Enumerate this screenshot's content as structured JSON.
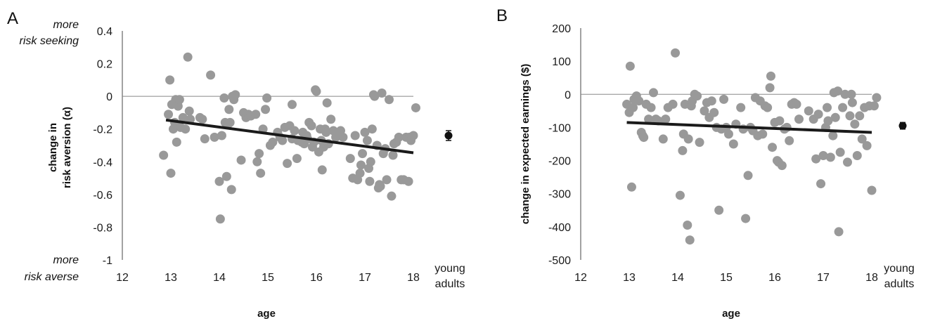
{
  "chart_data": [
    {
      "panel": "A",
      "type": "scatter",
      "xlabel": "age",
      "ylabel_line1": "change in",
      "ylabel_line2": "risk aversion (α)",
      "xlim": [
        12,
        18
      ],
      "ylim": [
        -1,
        0.4
      ],
      "x_ticks": [
        "12",
        "13",
        "14",
        "15",
        "16",
        "17",
        "18"
      ],
      "y_ticks": [
        "0.4",
        "0.2",
        "0",
        "-0.2",
        "-0.4",
        "-0.6",
        "-0.8",
        "-1"
      ],
      "annotation_top": [
        "more",
        "risk seeking"
      ],
      "annotation_bottom": [
        "more",
        "risk averse"
      ],
      "reference_line_y": 0,
      "point_color": "#999999",
      "points": [
        [
          12.85,
          -0.36
        ],
        [
          12.95,
          -0.11
        ],
        [
          12.98,
          0.1
        ],
        [
          13.0,
          -0.47
        ],
        [
          13.02,
          -0.05
        ],
        [
          13.05,
          -0.2
        ],
        [
          13.08,
          -0.16
        ],
        [
          13.1,
          -0.02
        ],
        [
          13.12,
          -0.28
        ],
        [
          13.15,
          -0.06
        ],
        [
          13.18,
          -0.02
        ],
        [
          13.2,
          -0.19
        ],
        [
          13.25,
          -0.13
        ],
        [
          13.3,
          -0.2
        ],
        [
          13.35,
          0.24
        ],
        [
          13.38,
          -0.09
        ],
        [
          13.4,
          -0.14
        ],
        [
          13.6,
          -0.13
        ],
        [
          13.65,
          -0.14
        ],
        [
          13.7,
          -0.26
        ],
        [
          13.82,
          0.13
        ],
        [
          13.9,
          -0.25
        ],
        [
          14.0,
          -0.52
        ],
        [
          14.02,
          -0.75
        ],
        [
          14.05,
          -0.24
        ],
        [
          14.1,
          -0.01
        ],
        [
          14.12,
          -0.16
        ],
        [
          14.15,
          -0.49
        ],
        [
          14.18,
          -0.17
        ],
        [
          14.2,
          -0.08
        ],
        [
          14.22,
          -0.16
        ],
        [
          14.25,
          -0.57
        ],
        [
          14.27,
          0.0
        ],
        [
          14.3,
          -0.02
        ],
        [
          14.33,
          0.01
        ],
        [
          14.45,
          -0.39
        ],
        [
          14.5,
          -0.1
        ],
        [
          14.55,
          -0.13
        ],
        [
          14.6,
          -0.11
        ],
        [
          14.65,
          -0.12
        ],
        [
          14.75,
          -0.11
        ],
        [
          14.78,
          -0.4
        ],
        [
          14.82,
          -0.35
        ],
        [
          14.85,
          -0.47
        ],
        [
          14.9,
          -0.2
        ],
        [
          14.95,
          -0.08
        ],
        [
          14.98,
          -0.01
        ],
        [
          15.05,
          -0.3
        ],
        [
          15.1,
          -0.28
        ],
        [
          15.2,
          -0.22
        ],
        [
          15.25,
          -0.25
        ],
        [
          15.3,
          -0.27
        ],
        [
          15.35,
          -0.19
        ],
        [
          15.4,
          -0.41
        ],
        [
          15.45,
          -0.18
        ],
        [
          15.5,
          -0.05
        ],
        [
          15.5,
          -0.26
        ],
        [
          15.55,
          -0.21
        ],
        [
          15.6,
          -0.38
        ],
        [
          15.62,
          -0.27
        ],
        [
          15.7,
          -0.28
        ],
        [
          15.72,
          -0.22
        ],
        [
          15.75,
          -0.29
        ],
        [
          15.8,
          -0.24
        ],
        [
          15.82,
          -0.26
        ],
        [
          15.85,
          -0.16
        ],
        [
          15.9,
          -0.18
        ],
        [
          15.92,
          -0.31
        ],
        [
          15.95,
          -0.28
        ],
        [
          15.98,
          0.04
        ],
        [
          16.0,
          0.03
        ],
        [
          16.05,
          -0.34
        ],
        [
          16.08,
          -0.2
        ],
        [
          16.1,
          -0.27
        ],
        [
          16.12,
          -0.45
        ],
        [
          16.15,
          -0.31
        ],
        [
          16.18,
          -0.2
        ],
        [
          16.2,
          -0.22
        ],
        [
          16.22,
          -0.04
        ],
        [
          16.25,
          -0.29
        ],
        [
          16.3,
          -0.14
        ],
        [
          16.35,
          -0.21
        ],
        [
          16.4,
          -0.25
        ],
        [
          16.5,
          -0.21
        ],
        [
          16.55,
          -0.25
        ],
        [
          16.7,
          -0.38
        ],
        [
          16.75,
          -0.5
        ],
        [
          16.8,
          -0.24
        ],
        [
          16.85,
          -0.51
        ],
        [
          16.9,
          -0.47
        ],
        [
          16.92,
          -0.42
        ],
        [
          16.95,
          -0.35
        ],
        [
          17.0,
          -0.22
        ],
        [
          17.05,
          -0.27
        ],
        [
          17.08,
          -0.44
        ],
        [
          17.1,
          -0.52
        ],
        [
          17.12,
          -0.4
        ],
        [
          17.15,
          -0.2
        ],
        [
          17.18,
          0.01
        ],
        [
          17.2,
          0.0
        ],
        [
          17.25,
          -0.3
        ],
        [
          17.28,
          -0.56
        ],
        [
          17.3,
          -0.54
        ],
        [
          17.32,
          -0.55
        ],
        [
          17.35,
          0.02
        ],
        [
          17.38,
          -0.35
        ],
        [
          17.42,
          -0.32
        ],
        [
          17.45,
          -0.51
        ],
        [
          17.5,
          -0.02
        ],
        [
          17.55,
          -0.61
        ],
        [
          17.58,
          -0.36
        ],
        [
          17.6,
          -0.29
        ],
        [
          17.65,
          -0.28
        ],
        [
          17.7,
          -0.25
        ],
        [
          17.75,
          -0.51
        ],
        [
          17.8,
          -0.51
        ],
        [
          17.85,
          -0.25
        ],
        [
          17.9,
          -0.52
        ],
        [
          17.92,
          -0.25
        ],
        [
          17.95,
          -0.27
        ],
        [
          18.0,
          -0.24
        ],
        [
          18.05,
          -0.07
        ]
      ],
      "trend_line": {
        "x": [
          12.9,
          18.0
        ],
        "y": [
          -0.145,
          -0.345
        ],
        "color": "#1a1a1a"
      },
      "young_adults": {
        "label_line1": "young",
        "label_line2": "adults",
        "value": -0.24,
        "error": 0.03
      }
    },
    {
      "panel": "B",
      "type": "scatter",
      "xlabel": "age",
      "ylabel": "change in expected earnings ($)",
      "xlim": [
        12,
        18
      ],
      "ylim": [
        -500,
        200
      ],
      "x_ticks": [
        "12",
        "13",
        "14",
        "15",
        "16",
        "17",
        "18"
      ],
      "y_ticks": [
        "200",
        "100",
        "0",
        "-100",
        "-200",
        "-300",
        "-400",
        "-500"
      ],
      "reference_line_y": 0,
      "point_color": "#999999",
      "points": [
        [
          12.95,
          -30
        ],
        [
          13.0,
          -55
        ],
        [
          13.02,
          85
        ],
        [
          13.05,
          -280
        ],
        [
          13.08,
          -40
        ],
        [
          13.1,
          -15
        ],
        [
          13.15,
          -5
        ],
        [
          13.2,
          -20
        ],
        [
          13.25,
          -115
        ],
        [
          13.28,
          -125
        ],
        [
          13.3,
          -130
        ],
        [
          13.35,
          -30
        ],
        [
          13.4,
          -75
        ],
        [
          13.45,
          -40
        ],
        [
          13.5,
          5
        ],
        [
          13.55,
          -75
        ],
        [
          13.6,
          -80
        ],
        [
          13.7,
          -135
        ],
        [
          13.75,
          -75
        ],
        [
          13.8,
          -40
        ],
        [
          13.9,
          -30
        ],
        [
          13.95,
          125
        ],
        [
          14.05,
          -305
        ],
        [
          14.1,
          -170
        ],
        [
          14.12,
          -120
        ],
        [
          14.15,
          -30
        ],
        [
          14.2,
          -395
        ],
        [
          14.22,
          -135
        ],
        [
          14.25,
          -440
        ],
        [
          14.28,
          -35
        ],
        [
          14.3,
          -20
        ],
        [
          14.35,
          0
        ],
        [
          14.4,
          -5
        ],
        [
          14.45,
          -145
        ],
        [
          14.55,
          -50
        ],
        [
          14.6,
          -25
        ],
        [
          14.65,
          -70
        ],
        [
          14.7,
          -20
        ],
        [
          14.75,
          -55
        ],
        [
          14.8,
          -100
        ],
        [
          14.85,
          -350
        ],
        [
          14.9,
          -105
        ],
        [
          14.95,
          -15
        ],
        [
          15.0,
          -100
        ],
        [
          15.05,
          -120
        ],
        [
          15.15,
          -150
        ],
        [
          15.2,
          -90
        ],
        [
          15.3,
          -40
        ],
        [
          15.35,
          -105
        ],
        [
          15.4,
          -375
        ],
        [
          15.45,
          -245
        ],
        [
          15.5,
          -100
        ],
        [
          15.55,
          -110
        ],
        [
          15.6,
          -10
        ],
        [
          15.65,
          -125
        ],
        [
          15.7,
          -20
        ],
        [
          15.75,
          -120
        ],
        [
          15.8,
          -35
        ],
        [
          15.85,
          -40
        ],
        [
          15.9,
          20
        ],
        [
          15.92,
          55
        ],
        [
          15.95,
          -160
        ],
        [
          16.0,
          -85
        ],
        [
          16.05,
          -200
        ],
        [
          16.08,
          -205
        ],
        [
          16.1,
          -80
        ],
        [
          16.15,
          -215
        ],
        [
          16.2,
          -105
        ],
        [
          16.25,
          -100
        ],
        [
          16.3,
          -140
        ],
        [
          16.35,
          -30
        ],
        [
          16.4,
          -25
        ],
        [
          16.45,
          -30
        ],
        [
          16.5,
          -75
        ],
        [
          16.7,
          -50
        ],
        [
          16.8,
          -75
        ],
        [
          16.85,
          -195
        ],
        [
          16.9,
          -60
        ],
        [
          16.95,
          -270
        ],
        [
          17.0,
          -185
        ],
        [
          17.05,
          -100
        ],
        [
          17.08,
          -40
        ],
        [
          17.1,
          -80
        ],
        [
          17.15,
          -190
        ],
        [
          17.2,
          -125
        ],
        [
          17.22,
          5
        ],
        [
          17.25,
          -70
        ],
        [
          17.3,
          10
        ],
        [
          17.32,
          -415
        ],
        [
          17.35,
          -175
        ],
        [
          17.4,
          -40
        ],
        [
          17.45,
          0
        ],
        [
          17.5,
          -205
        ],
        [
          17.55,
          -65
        ],
        [
          17.58,
          0
        ],
        [
          17.6,
          -25
        ],
        [
          17.65,
          -90
        ],
        [
          17.7,
          -185
        ],
        [
          17.75,
          -65
        ],
        [
          17.8,
          -135
        ],
        [
          17.85,
          -40
        ],
        [
          17.9,
          -155
        ],
        [
          17.95,
          -35
        ],
        [
          18.0,
          -290
        ],
        [
          18.05,
          -35
        ],
        [
          18.1,
          -10
        ]
      ],
      "trend_line": {
        "x": [
          12.95,
          18.0
        ],
        "y": [
          -85,
          -115
        ],
        "color": "#1a1a1a"
      },
      "young_adults": {
        "label_line1": "young",
        "label_line2": "adults",
        "value": -95,
        "error": 10
      }
    }
  ]
}
